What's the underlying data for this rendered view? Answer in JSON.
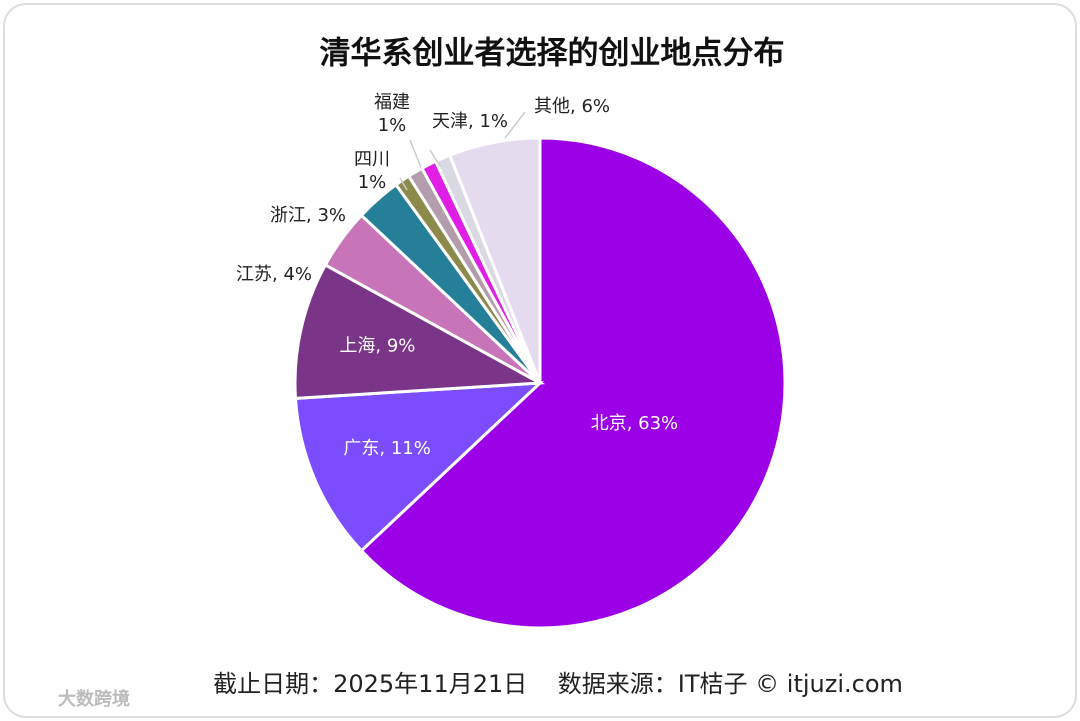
{
  "chart_data": {
    "type": "pie",
    "title": "清华系创业者选择的创业地点分布",
    "categories": [
      "北京",
      "广东",
      "上海",
      "江苏",
      "浙江",
      "四川",
      "福建",
      null,
      "天津",
      "其他"
    ],
    "values": [
      63,
      11,
      9,
      4,
      3,
      1,
      1,
      1,
      1,
      6
    ],
    "value_labels": [
      "北京, 63%",
      "广东, 11%",
      "上海, 9%",
      "江苏, 4%",
      "浙江, 3%",
      "四川\n1%",
      "福建\n1%",
      null,
      "天津, 1%",
      "其他, 6%"
    ],
    "colors": [
      "#9b00e6",
      "#7b4dff",
      "#7a3588",
      "#c874b8",
      "#257f99",
      "#8c8a4a",
      "#b39cab",
      "#e01ee6",
      "#d9d9e3",
      "#e4dcee"
    ],
    "source": "截止日期：2025年11月21日    数据来源：IT桔子 © itjuzi.com",
    "watermark": "大数跨境"
  }
}
